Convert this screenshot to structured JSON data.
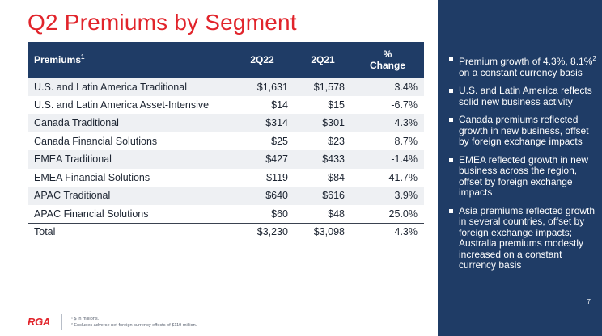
{
  "title": "Q2 Premiums by Segment",
  "table": {
    "headers": {
      "segment": "Premiums",
      "segment_note": "1",
      "col_2q22": "2Q22",
      "col_2q21": "2Q21",
      "pct_symbol": "%",
      "pct_label": "Change"
    },
    "rows": [
      {
        "segment": "U.S. and Latin America Traditional",
        "q22": "$1,631",
        "q21": "$1,578",
        "change": "3.4%"
      },
      {
        "segment": "U.S. and Latin America Asset-Intensive",
        "q22": "$14",
        "q21": "$15",
        "change": "-6.7%"
      },
      {
        "segment": "Canada Traditional",
        "q22": "$314",
        "q21": "$301",
        "change": "4.3%"
      },
      {
        "segment": "Canada Financial Solutions",
        "q22": "$25",
        "q21": "$23",
        "change": "8.7%"
      },
      {
        "segment": "EMEA Traditional",
        "q22": "$427",
        "q21": "$433",
        "change": "-1.4%"
      },
      {
        "segment": "EMEA Financial Solutions",
        "q22": "$119",
        "q21": "$84",
        "change": "41.7%"
      },
      {
        "segment": "APAC Traditional",
        "q22": "$640",
        "q21": "$616",
        "change": "3.9%"
      },
      {
        "segment": "APAC Financial Solutions",
        "q22": "$60",
        "q21": "$48",
        "change": "25.0%"
      }
    ],
    "total": {
      "segment": "Total",
      "q22": "$3,230",
      "q21": "$3,098",
      "change": "4.3%"
    }
  },
  "bullets": {
    "b1_pre": "Premium growth of 4.3%, 8.1%",
    "b1_sup": "2",
    "b1_post": " on a constant currency basis",
    "b2": "U.S. and Latin America reflects solid new business activity",
    "b3": "Canada premiums reflected growth in new business, offset by foreign exchange impacts",
    "b4": "EMEA reflected growth in new business across the region, offset by foreign exchange impacts",
    "b5": "Asia premiums reflected growth in several countries, offset by foreign exchange impacts; Australia premiums modestly increased on a constant currency basis"
  },
  "footer": {
    "logo": "RGA",
    "footnote1": "¹ $ in millions.",
    "footnote2": "² Excludes adverse net foreign currency effects of $119 million.",
    "page_number": "7"
  },
  "colors": {
    "title_red": "#e1242b",
    "navy": "#1f3c66",
    "row_shade": "#eef0f3"
  }
}
